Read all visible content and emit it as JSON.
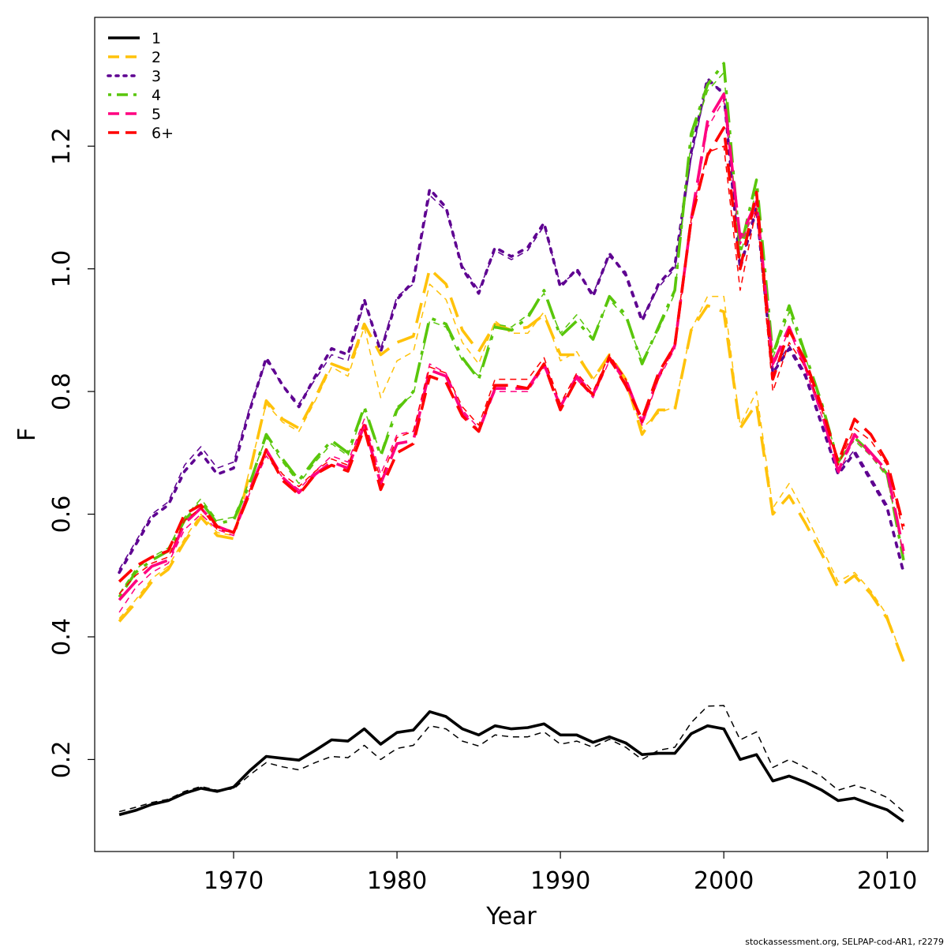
{
  "chart_data": {
    "type": "line",
    "xlabel": "Year",
    "ylabel": "F",
    "xlim": [
      1961.5,
      2012.5
    ],
    "ylim": [
      0.05,
      1.41
    ],
    "x_ticks": [
      1970,
      1980,
      1990,
      2000,
      2010
    ],
    "y_ticks": [
      0.2,
      0.4,
      0.6,
      0.8,
      1.0,
      1.2
    ],
    "y_tick_labels": [
      "0.2",
      "0.4",
      "0.6",
      "0.8",
      "1.0",
      "1.2"
    ],
    "x": [
      1963,
      1964,
      1965,
      1966,
      1967,
      1968,
      1969,
      1970,
      1971,
      1972,
      1973,
      1974,
      1975,
      1976,
      1977,
      1978,
      1979,
      1980,
      1981,
      1982,
      1983,
      1984,
      1985,
      1986,
      1987,
      1988,
      1989,
      1990,
      1991,
      1992,
      1993,
      1994,
      1995,
      1996,
      1997,
      1998,
      1999,
      2000,
      2001,
      2002,
      2003,
      2004,
      2005,
      2006,
      2007,
      2008,
      2009,
      2010,
      2011
    ],
    "legend_position": "top-left",
    "grid": false,
    "series": [
      {
        "name": "1",
        "color": "#000000",
        "dash": "solid",
        "values": [
          0.11,
          0.117,
          0.127,
          0.133,
          0.145,
          0.153,
          0.148,
          0.155,
          0.182,
          0.205,
          0.202,
          0.199,
          0.215,
          0.232,
          0.23,
          0.25,
          0.225,
          0.244,
          0.248,
          0.278,
          0.27,
          0.25,
          0.24,
          0.255,
          0.25,
          0.252,
          0.258,
          0.24,
          0.24,
          0.228,
          0.237,
          0.227,
          0.208,
          0.21,
          0.21,
          0.242,
          0.255,
          0.25,
          0.2,
          0.208,
          0.165,
          0.173,
          0.163,
          0.15,
          0.133,
          0.137,
          0.127,
          0.118,
          0.099
        ],
        "values_thin": [
          0.115,
          0.122,
          0.13,
          0.135,
          0.148,
          0.156,
          0.15,
          0.152,
          0.175,
          0.195,
          0.188,
          0.183,
          0.195,
          0.205,
          0.203,
          0.223,
          0.2,
          0.218,
          0.223,
          0.255,
          0.25,
          0.23,
          0.222,
          0.24,
          0.237,
          0.237,
          0.245,
          0.225,
          0.23,
          0.22,
          0.233,
          0.22,
          0.2,
          0.215,
          0.22,
          0.26,
          0.287,
          0.288,
          0.232,
          0.245,
          0.187,
          0.2,
          0.187,
          0.172,
          0.15,
          0.158,
          0.15,
          0.138,
          0.115
        ]
      },
      {
        "name": "2",
        "color": "#FFC20A",
        "dash": "long",
        "values": [
          0.425,
          0.455,
          0.49,
          0.51,
          0.555,
          0.595,
          0.565,
          0.56,
          0.67,
          0.785,
          0.755,
          0.74,
          0.79,
          0.845,
          0.835,
          0.91,
          0.86,
          0.88,
          0.89,
          1.0,
          0.975,
          0.9,
          0.865,
          0.91,
          0.9,
          0.905,
          0.925,
          0.86,
          0.86,
          0.82,
          0.86,
          0.82,
          0.73,
          0.77,
          0.77,
          0.9,
          0.94,
          0.93,
          0.74,
          0.78,
          0.6,
          0.63,
          0.585,
          0.535,
          0.48,
          0.5,
          0.47,
          0.43,
          0.36
        ],
        "values_thin": [
          0.43,
          0.46,
          0.495,
          0.515,
          0.56,
          0.6,
          0.57,
          0.565,
          0.675,
          0.78,
          0.75,
          0.735,
          0.785,
          0.84,
          0.825,
          0.905,
          0.79,
          0.85,
          0.865,
          0.975,
          0.95,
          0.88,
          0.845,
          0.915,
          0.895,
          0.895,
          0.93,
          0.85,
          0.865,
          0.82,
          0.855,
          0.81,
          0.74,
          0.765,
          0.775,
          0.9,
          0.955,
          0.955,
          0.745,
          0.8,
          0.61,
          0.65,
          0.6,
          0.545,
          0.49,
          0.505,
          0.475,
          0.435,
          0.36
        ]
      },
      {
        "name": "3",
        "color": "#5E0091",
        "dash": "dotted",
        "values": [
          0.505,
          0.55,
          0.595,
          0.615,
          0.67,
          0.7,
          0.665,
          0.675,
          0.77,
          0.855,
          0.81,
          0.775,
          0.825,
          0.87,
          0.86,
          0.95,
          0.865,
          0.95,
          0.98,
          1.13,
          1.1,
          1.0,
          0.96,
          1.035,
          1.02,
          1.035,
          1.075,
          0.97,
          1.0,
          0.955,
          1.025,
          0.99,
          0.915,
          0.975,
          1.005,
          1.19,
          1.31,
          1.285,
          1.0,
          1.1,
          0.83,
          0.87,
          0.825,
          0.745,
          0.665,
          0.7,
          0.655,
          0.61,
          0.505
        ],
        "values_thin": [
          0.51,
          0.555,
          0.6,
          0.62,
          0.68,
          0.71,
          0.675,
          0.685,
          0.775,
          0.85,
          0.81,
          0.78,
          0.82,
          0.86,
          0.85,
          0.945,
          0.87,
          0.955,
          0.975,
          1.12,
          1.095,
          1.005,
          0.965,
          1.03,
          1.015,
          1.03,
          1.07,
          0.975,
          0.995,
          0.96,
          1.02,
          0.995,
          0.92,
          0.97,
          1.0,
          1.18,
          1.305,
          1.29,
          1.01,
          1.09,
          0.835,
          0.875,
          0.83,
          0.75,
          0.67,
          0.705,
          0.66,
          0.615,
          0.51
        ]
      },
      {
        "name": "4",
        "color": "#59C60B",
        "dash": "dashdot",
        "values": [
          0.465,
          0.505,
          0.525,
          0.54,
          0.59,
          0.62,
          0.585,
          0.59,
          0.65,
          0.73,
          0.69,
          0.655,
          0.69,
          0.72,
          0.7,
          0.775,
          0.695,
          0.77,
          0.8,
          0.92,
          0.91,
          0.855,
          0.82,
          0.905,
          0.9,
          0.92,
          0.965,
          0.89,
          0.915,
          0.885,
          0.955,
          0.925,
          0.845,
          0.905,
          0.965,
          1.22,
          1.3,
          1.335,
          1.03,
          1.145,
          0.86,
          0.94,
          0.86,
          0.78,
          0.685,
          0.725,
          0.7,
          0.665,
          0.525
        ],
        "values_thin": [
          0.47,
          0.51,
          0.53,
          0.545,
          0.595,
          0.625,
          0.59,
          0.595,
          0.655,
          0.725,
          0.685,
          0.65,
          0.685,
          0.715,
          0.695,
          0.77,
          0.7,
          0.775,
          0.795,
          0.915,
          0.905,
          0.85,
          0.825,
          0.91,
          0.905,
          0.925,
          0.96,
          0.895,
          0.925,
          0.89,
          0.95,
          0.92,
          0.85,
          0.9,
          0.96,
          1.21,
          1.29,
          1.32,
          1.02,
          1.13,
          0.855,
          0.93,
          0.855,
          0.775,
          0.69,
          0.72,
          0.695,
          0.66,
          0.53
        ]
      },
      {
        "name": "5",
        "color": "#FF0080",
        "dash": "longdash",
        "values": [
          0.46,
          0.49,
          0.515,
          0.525,
          0.585,
          0.61,
          0.58,
          0.57,
          0.64,
          0.705,
          0.66,
          0.635,
          0.665,
          0.685,
          0.675,
          0.745,
          0.65,
          0.715,
          0.72,
          0.835,
          0.825,
          0.765,
          0.735,
          0.805,
          0.805,
          0.805,
          0.845,
          0.775,
          0.825,
          0.795,
          0.855,
          0.82,
          0.75,
          0.825,
          0.875,
          1.08,
          1.24,
          1.285,
          1.05,
          1.11,
          0.845,
          0.905,
          0.84,
          0.765,
          0.67,
          0.73,
          0.7,
          0.67,
          0.54
        ],
        "values_thin": [
          0.44,
          0.48,
          0.505,
          0.52,
          0.575,
          0.6,
          0.575,
          0.565,
          0.635,
          0.695,
          0.66,
          0.64,
          0.67,
          0.695,
          0.685,
          0.755,
          0.665,
          0.73,
          0.735,
          0.845,
          0.83,
          0.77,
          0.74,
          0.8,
          0.8,
          0.8,
          0.84,
          0.775,
          0.82,
          0.79,
          0.85,
          0.815,
          0.745,
          0.82,
          0.87,
          1.07,
          1.23,
          1.275,
          1.04,
          1.1,
          0.84,
          0.9,
          0.835,
          0.76,
          0.665,
          0.725,
          0.695,
          0.665,
          0.535
        ]
      },
      {
        "name": "6+",
        "color": "#FF0000",
        "dash": "dashed",
        "values": [
          0.49,
          0.515,
          0.53,
          0.54,
          0.6,
          0.615,
          0.58,
          0.57,
          0.635,
          0.705,
          0.655,
          0.632,
          0.665,
          0.68,
          0.67,
          0.74,
          0.64,
          0.7,
          0.715,
          0.825,
          0.815,
          0.76,
          0.735,
          0.81,
          0.81,
          0.805,
          0.845,
          0.77,
          0.82,
          0.795,
          0.855,
          0.81,
          0.755,
          0.83,
          0.875,
          1.08,
          1.185,
          1.23,
          1.0,
          1.125,
          0.82,
          0.9,
          0.85,
          0.775,
          0.685,
          0.755,
          0.73,
          0.685,
          0.58
        ],
        "values_thin": [
          0.47,
          0.5,
          0.52,
          0.53,
          0.59,
          0.61,
          0.575,
          0.57,
          0.64,
          0.7,
          0.665,
          0.645,
          0.67,
          0.69,
          0.68,
          0.75,
          0.655,
          0.725,
          0.735,
          0.84,
          0.83,
          0.775,
          0.745,
          0.82,
          0.82,
          0.82,
          0.855,
          0.78,
          0.83,
          0.8,
          0.86,
          0.82,
          0.75,
          0.82,
          0.88,
          1.08,
          1.19,
          1.2,
          0.965,
          1.1,
          0.8,
          0.88,
          0.84,
          0.77,
          0.68,
          0.74,
          0.72,
          0.68,
          0.57
        ]
      }
    ]
  },
  "footer": "stockassessment.org, SELPAP-cod-AR1, r2279"
}
